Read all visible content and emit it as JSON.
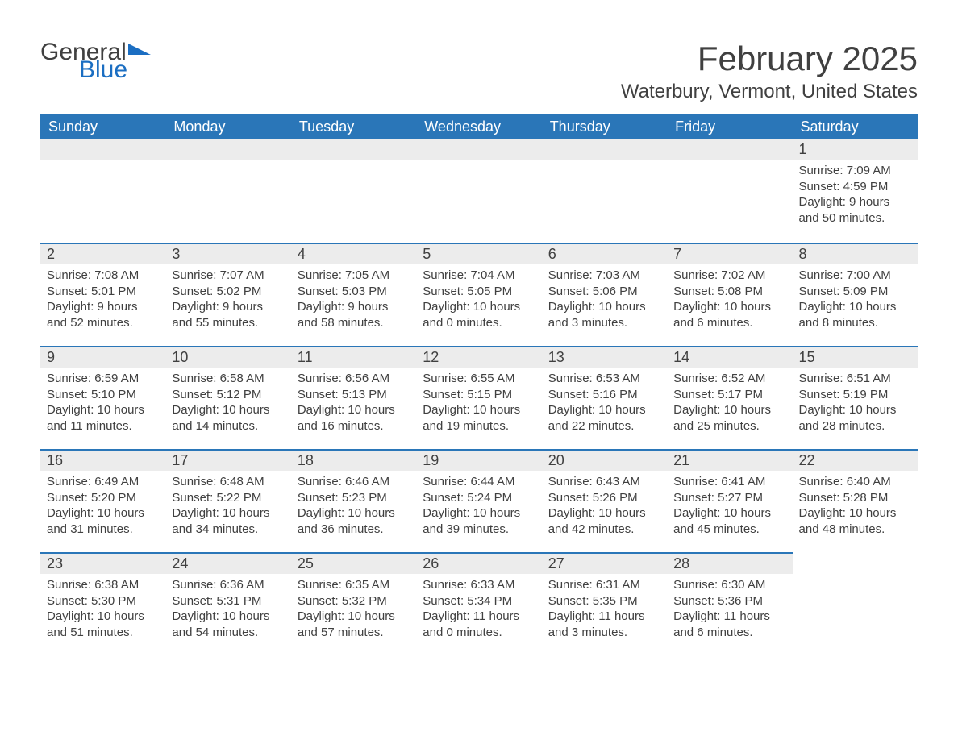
{
  "logo": {
    "text1": "General",
    "text2": "Blue"
  },
  "title": "February 2025",
  "location": "Waterbury, Vermont, United States",
  "weekdays": [
    "Sunday",
    "Monday",
    "Tuesday",
    "Wednesday",
    "Thursday",
    "Friday",
    "Saturday"
  ],
  "colors": {
    "header_bg": "#2a76b8",
    "header_text": "#ffffff",
    "daynum_bg": "#ececec",
    "border": "#2a76b8",
    "body_text": "#404040",
    "logo_blue": "#1b6ec2",
    "background": "#ffffff"
  },
  "fonts": {
    "title_size_pt": 32,
    "location_size_pt": 18,
    "weekday_size_pt": 14,
    "daynum_size_pt": 14,
    "body_size_pt": 11
  },
  "layout": {
    "columns": 7,
    "rows": 5,
    "start_weekday_index": 6,
    "days_in_month": 28
  },
  "days": {
    "1": {
      "sunrise": "7:09 AM",
      "sunset": "4:59 PM",
      "daylight_h": 9,
      "daylight_m": 50
    },
    "2": {
      "sunrise": "7:08 AM",
      "sunset": "5:01 PM",
      "daylight_h": 9,
      "daylight_m": 52
    },
    "3": {
      "sunrise": "7:07 AM",
      "sunset": "5:02 PM",
      "daylight_h": 9,
      "daylight_m": 55
    },
    "4": {
      "sunrise": "7:05 AM",
      "sunset": "5:03 PM",
      "daylight_h": 9,
      "daylight_m": 58
    },
    "5": {
      "sunrise": "7:04 AM",
      "sunset": "5:05 PM",
      "daylight_h": 10,
      "daylight_m": 0
    },
    "6": {
      "sunrise": "7:03 AM",
      "sunset": "5:06 PM",
      "daylight_h": 10,
      "daylight_m": 3
    },
    "7": {
      "sunrise": "7:02 AM",
      "sunset": "5:08 PM",
      "daylight_h": 10,
      "daylight_m": 6
    },
    "8": {
      "sunrise": "7:00 AM",
      "sunset": "5:09 PM",
      "daylight_h": 10,
      "daylight_m": 8
    },
    "9": {
      "sunrise": "6:59 AM",
      "sunset": "5:10 PM",
      "daylight_h": 10,
      "daylight_m": 11
    },
    "10": {
      "sunrise": "6:58 AM",
      "sunset": "5:12 PM",
      "daylight_h": 10,
      "daylight_m": 14
    },
    "11": {
      "sunrise": "6:56 AM",
      "sunset": "5:13 PM",
      "daylight_h": 10,
      "daylight_m": 16
    },
    "12": {
      "sunrise": "6:55 AM",
      "sunset": "5:15 PM",
      "daylight_h": 10,
      "daylight_m": 19
    },
    "13": {
      "sunrise": "6:53 AM",
      "sunset": "5:16 PM",
      "daylight_h": 10,
      "daylight_m": 22
    },
    "14": {
      "sunrise": "6:52 AM",
      "sunset": "5:17 PM",
      "daylight_h": 10,
      "daylight_m": 25
    },
    "15": {
      "sunrise": "6:51 AM",
      "sunset": "5:19 PM",
      "daylight_h": 10,
      "daylight_m": 28
    },
    "16": {
      "sunrise": "6:49 AM",
      "sunset": "5:20 PM",
      "daylight_h": 10,
      "daylight_m": 31
    },
    "17": {
      "sunrise": "6:48 AM",
      "sunset": "5:22 PM",
      "daylight_h": 10,
      "daylight_m": 34
    },
    "18": {
      "sunrise": "6:46 AM",
      "sunset": "5:23 PM",
      "daylight_h": 10,
      "daylight_m": 36
    },
    "19": {
      "sunrise": "6:44 AM",
      "sunset": "5:24 PM",
      "daylight_h": 10,
      "daylight_m": 39
    },
    "20": {
      "sunrise": "6:43 AM",
      "sunset": "5:26 PM",
      "daylight_h": 10,
      "daylight_m": 42
    },
    "21": {
      "sunrise": "6:41 AM",
      "sunset": "5:27 PM",
      "daylight_h": 10,
      "daylight_m": 45
    },
    "22": {
      "sunrise": "6:40 AM",
      "sunset": "5:28 PM",
      "daylight_h": 10,
      "daylight_m": 48
    },
    "23": {
      "sunrise": "6:38 AM",
      "sunset": "5:30 PM",
      "daylight_h": 10,
      "daylight_m": 51
    },
    "24": {
      "sunrise": "6:36 AM",
      "sunset": "5:31 PM",
      "daylight_h": 10,
      "daylight_m": 54
    },
    "25": {
      "sunrise": "6:35 AM",
      "sunset": "5:32 PM",
      "daylight_h": 10,
      "daylight_m": 57
    },
    "26": {
      "sunrise": "6:33 AM",
      "sunset": "5:34 PM",
      "daylight_h": 11,
      "daylight_m": 0
    },
    "27": {
      "sunrise": "6:31 AM",
      "sunset": "5:35 PM",
      "daylight_h": 11,
      "daylight_m": 3
    },
    "28": {
      "sunrise": "6:30 AM",
      "sunset": "5:36 PM",
      "daylight_h": 11,
      "daylight_m": 6
    }
  },
  "labels": {
    "sunrise_prefix": "Sunrise: ",
    "sunset_prefix": "Sunset: ",
    "daylight_prefix": "Daylight: ",
    "hours_word": " hours",
    "and_word": "and ",
    "minutes_word": " minutes."
  }
}
